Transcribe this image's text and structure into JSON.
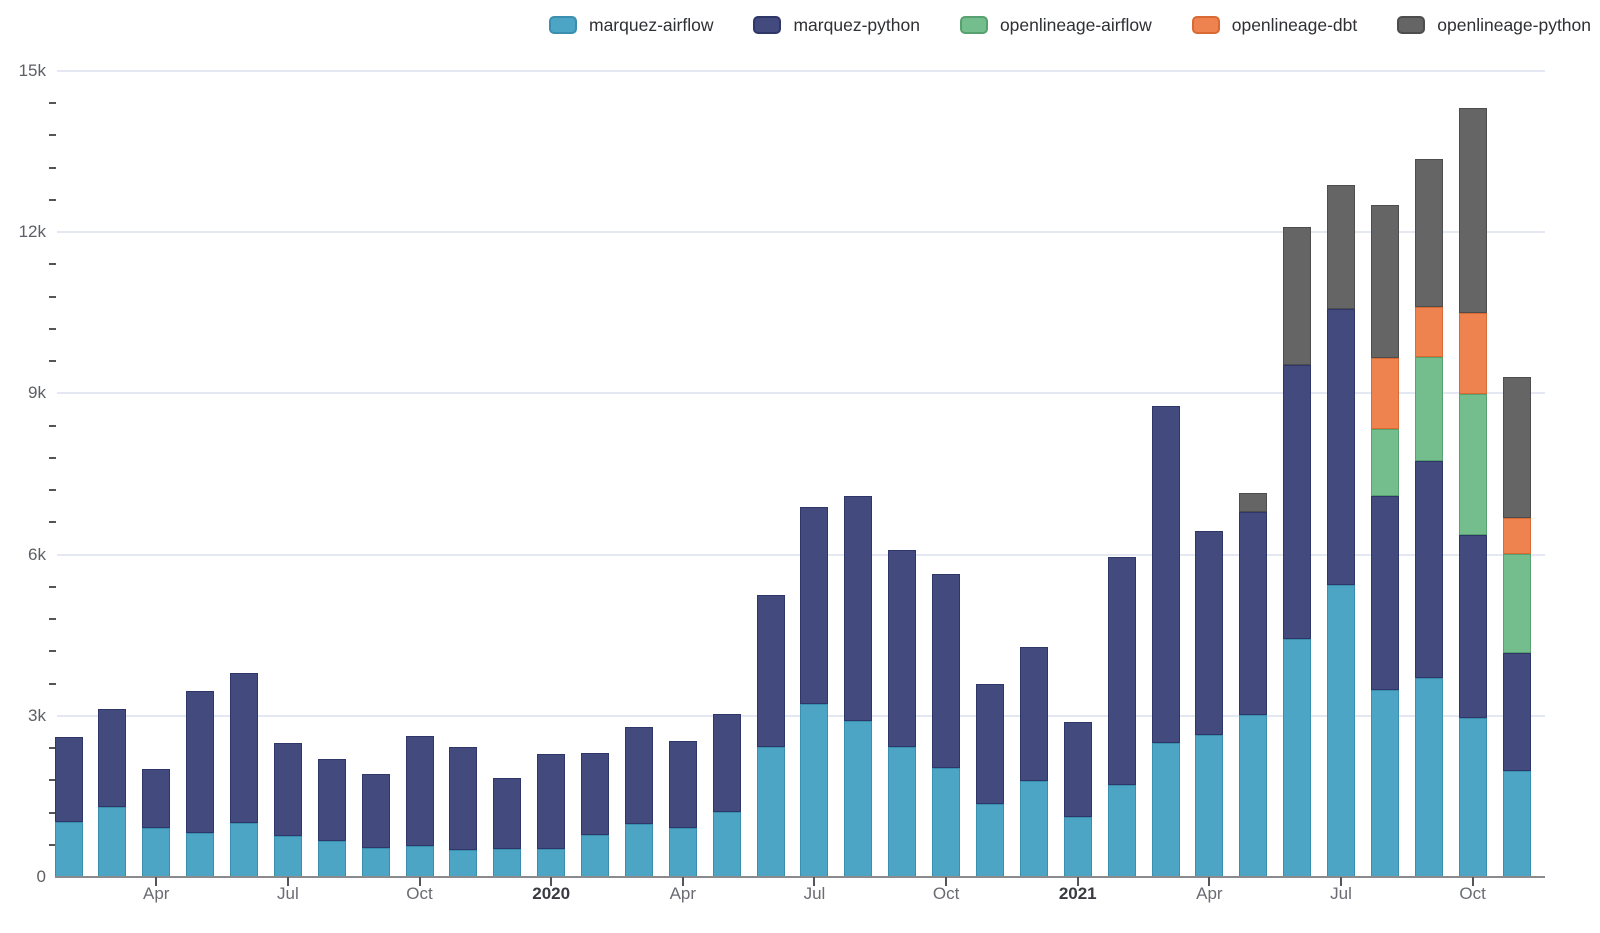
{
  "chart_data": {
    "type": "bar",
    "stacked": true,
    "title": "",
    "xlabel": "",
    "ylabel": "",
    "ylim": [
      0,
      15000
    ],
    "grid": "horizontal",
    "legend_position": "top",
    "background": "#ffffff",
    "gridline_color": "#e4e8f3",
    "axis_line_color": "#8a8a8f",
    "x": [
      "2019-02",
      "2019-03",
      "2019-04",
      "2019-05",
      "2019-06",
      "2019-07",
      "2019-08",
      "2019-09",
      "2019-10",
      "2019-11",
      "2019-12",
      "2020-01",
      "2020-02",
      "2020-03",
      "2020-04",
      "2020-05",
      "2020-06",
      "2020-07",
      "2020-08",
      "2020-09",
      "2020-10",
      "2020-11",
      "2020-12",
      "2021-01",
      "2021-02",
      "2021-03",
      "2021-04",
      "2021-05",
      "2021-06",
      "2021-07",
      "2021-08",
      "2021-09",
      "2021-10",
      "2021-11"
    ],
    "x_tick_labels": [
      {
        "index": 2,
        "label": "Apr",
        "bold": false
      },
      {
        "index": 5,
        "label": "Jul",
        "bold": false
      },
      {
        "index": 8,
        "label": "Oct",
        "bold": false
      },
      {
        "index": 11,
        "label": "2020",
        "bold": true
      },
      {
        "index": 14,
        "label": "Apr",
        "bold": false
      },
      {
        "index": 17,
        "label": "Jul",
        "bold": false
      },
      {
        "index": 20,
        "label": "Oct",
        "bold": false
      },
      {
        "index": 23,
        "label": "2021",
        "bold": true
      },
      {
        "index": 26,
        "label": "Apr",
        "bold": false
      },
      {
        "index": 29,
        "label": "Jul",
        "bold": false
      },
      {
        "index": 32,
        "label": "Oct",
        "bold": false
      }
    ],
    "y_axis": {
      "min": 0,
      "max": 15000,
      "major_tick_step": 3000,
      "minor_tick_step": 600,
      "major_tick_labels": [
        "0",
        "3k",
        "6k",
        "9k",
        "12k",
        "15k"
      ]
    },
    "series": [
      {
        "name": "marquez-airflow",
        "color": "#4da5c6",
        "border_color": "#3a8fae",
        "values": [
          1020,
          1300,
          920,
          820,
          1000,
          760,
          670,
          540,
          570,
          500,
          520,
          520,
          790,
          990,
          910,
          1210,
          2420,
          3220,
          2910,
          2420,
          2030,
          1360,
          1790,
          1110,
          1710,
          2490,
          2650,
          3020,
          4430,
          5430,
          3480,
          3710,
          2960,
          1980
        ]
      },
      {
        "name": "marquez-python",
        "color": "#434a7d",
        "border_color": "#2f3768",
        "values": [
          1580,
          1820,
          1090,
          2650,
          2790,
          1740,
          1520,
          1380,
          2060,
          1920,
          1320,
          1770,
          1520,
          1800,
          1630,
          1830,
          2830,
          3670,
          4180,
          3660,
          3610,
          2240,
          2490,
          1780,
          4250,
          6280,
          3780,
          3770,
          5100,
          5140,
          3610,
          4030,
          3410,
          2190
        ]
      },
      {
        "name": "openlineage-airflow",
        "color": "#74bd8c",
        "border_color": "#57a171",
        "values": [
          0,
          0,
          0,
          0,
          0,
          0,
          0,
          0,
          0,
          0,
          0,
          0,
          0,
          0,
          0,
          0,
          0,
          0,
          0,
          0,
          0,
          0,
          0,
          0,
          0,
          0,
          0,
          0,
          0,
          0,
          1250,
          1930,
          2620,
          1840
        ]
      },
      {
        "name": "openlineage-dbt",
        "color": "#ee8350",
        "border_color": "#d96a33",
        "values": [
          0,
          0,
          0,
          0,
          0,
          0,
          0,
          0,
          0,
          0,
          0,
          0,
          0,
          0,
          0,
          0,
          0,
          0,
          0,
          0,
          0,
          0,
          0,
          0,
          0,
          0,
          0,
          0,
          0,
          0,
          1310,
          940,
          1510,
          680
        ]
      },
      {
        "name": "openlineage-python",
        "color": "#656565",
        "border_color": "#4d4d4d",
        "values": [
          0,
          0,
          0,
          0,
          0,
          0,
          0,
          0,
          0,
          0,
          0,
          0,
          0,
          0,
          0,
          0,
          0,
          0,
          0,
          0,
          0,
          0,
          0,
          0,
          0,
          0,
          0,
          350,
          2570,
          2300,
          2850,
          2750,
          3820,
          2610
        ]
      }
    ]
  }
}
